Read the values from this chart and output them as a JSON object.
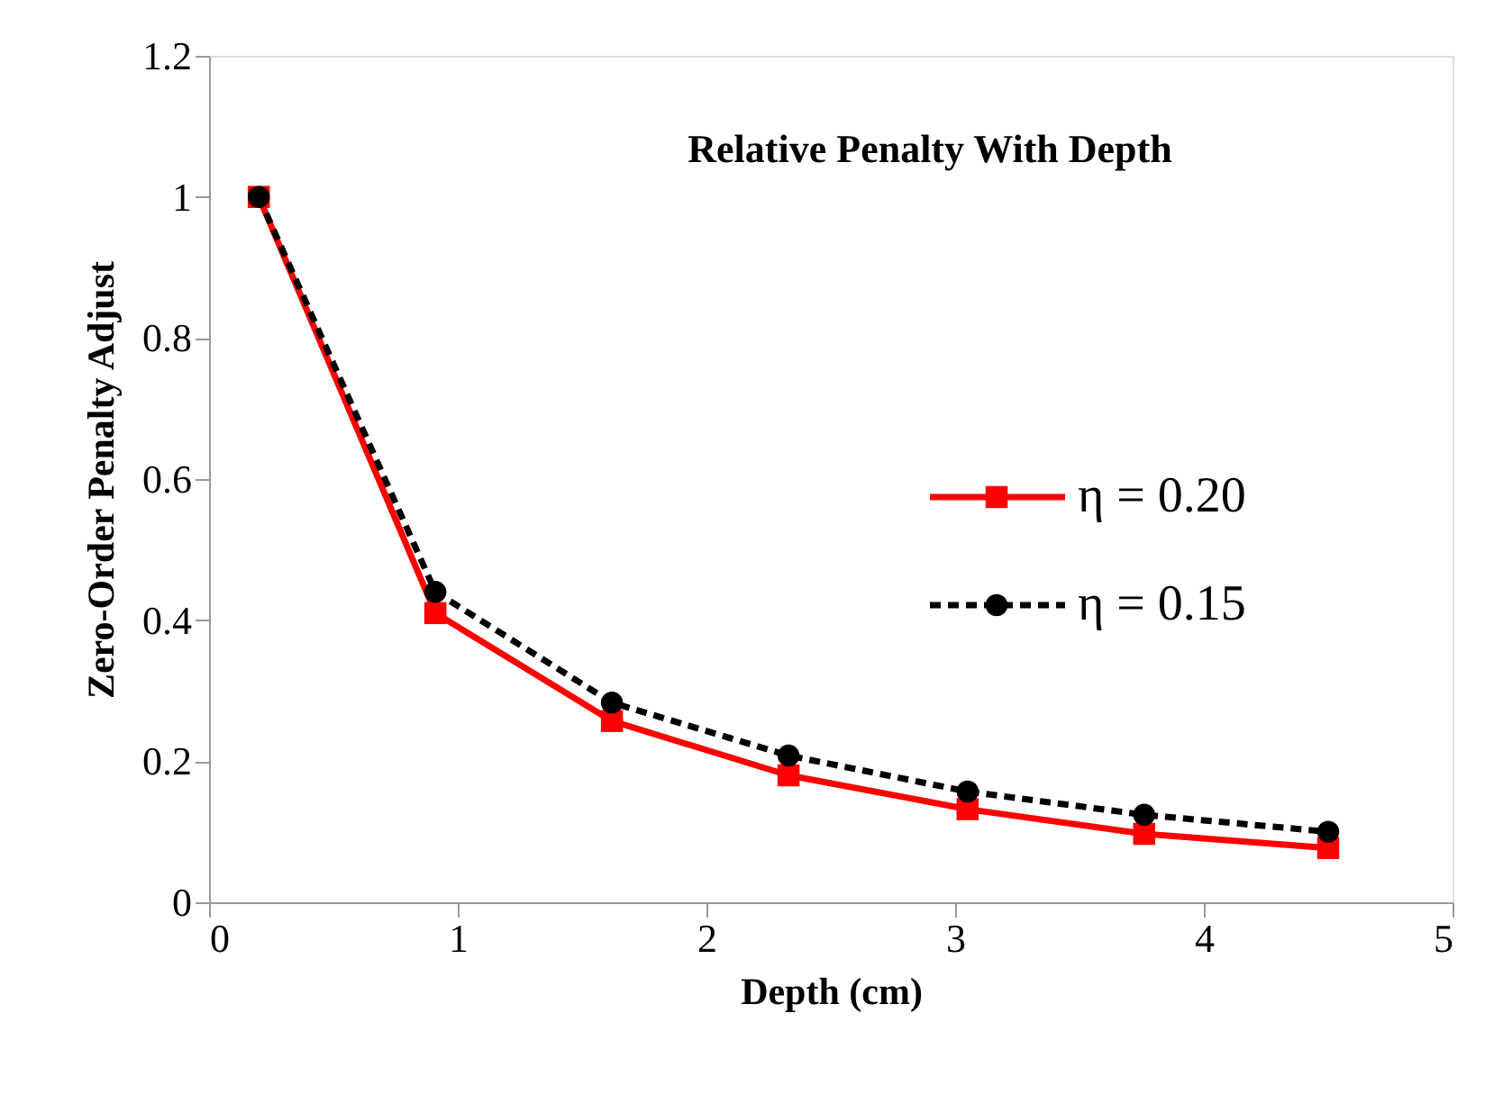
{
  "chart_data": {
    "type": "line",
    "title": "Relative Penalty With Depth",
    "xlabel": "Depth (cm)",
    "ylabel": "Zero-Order Penalty Adjust",
    "xlim": [
      0,
      5
    ],
    "xticks": [
      0,
      1,
      2,
      3,
      4,
      5
    ],
    "ylim": [
      0,
      1.2
    ],
    "yticks": [
      0,
      {
        "value": 0.2,
        "label": "0.2"
      },
      {
        "value": 0.4,
        "label": "0.4"
      },
      {
        "value": 0.6,
        "label": "0.6"
      },
      {
        "value": 0.8,
        "label": "0.8"
      },
      1,
      {
        "value": 1.2,
        "label": "1.2"
      }
    ],
    "grid": false,
    "legend": "right",
    "series": [
      {
        "name": "η = 0.20",
        "color": "#ff0000",
        "marker": "square",
        "line_style": "solid",
        "x": [
          0.2,
          0.91,
          1.62,
          2.33,
          3.05,
          3.76,
          4.5
        ],
        "values": [
          1.0,
          0.41,
          0.257,
          0.18,
          0.132,
          0.097,
          0.077
        ]
      },
      {
        "name": "η = 0.15",
        "color": "#000000",
        "marker": "circle",
        "line_style": "dashed",
        "x": [
          0.2,
          0.91,
          1.62,
          2.33,
          3.05,
          3.76,
          4.5
        ],
        "values": [
          1.0,
          0.44,
          0.283,
          0.208,
          0.157,
          0.124,
          0.1
        ]
      }
    ]
  }
}
